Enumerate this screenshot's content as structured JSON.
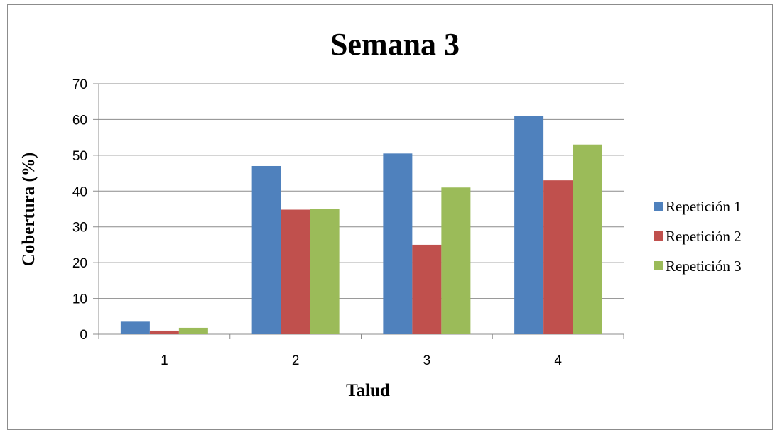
{
  "chart_data": {
    "type": "bar",
    "title": "Semana 3",
    "xlabel": "Talud",
    "ylabel": "Cobertura (%)",
    "categories": [
      "1",
      "2",
      "3",
      "4"
    ],
    "ylim": [
      0,
      70
    ],
    "yticks": [
      0,
      10,
      20,
      30,
      40,
      50,
      60,
      70
    ],
    "grid": true,
    "legend_position": "right",
    "series": [
      {
        "name": "Repetición 1",
        "color": "#4f81bd",
        "values": [
          3.5,
          47,
          50.5,
          61
        ]
      },
      {
        "name": "Repetición 2",
        "color": "#c0504d",
        "values": [
          1,
          34.8,
          25,
          43
        ]
      },
      {
        "name": "Repetición 3",
        "color": "#9bbb59",
        "values": [
          1.8,
          35,
          41,
          53
        ]
      }
    ]
  }
}
